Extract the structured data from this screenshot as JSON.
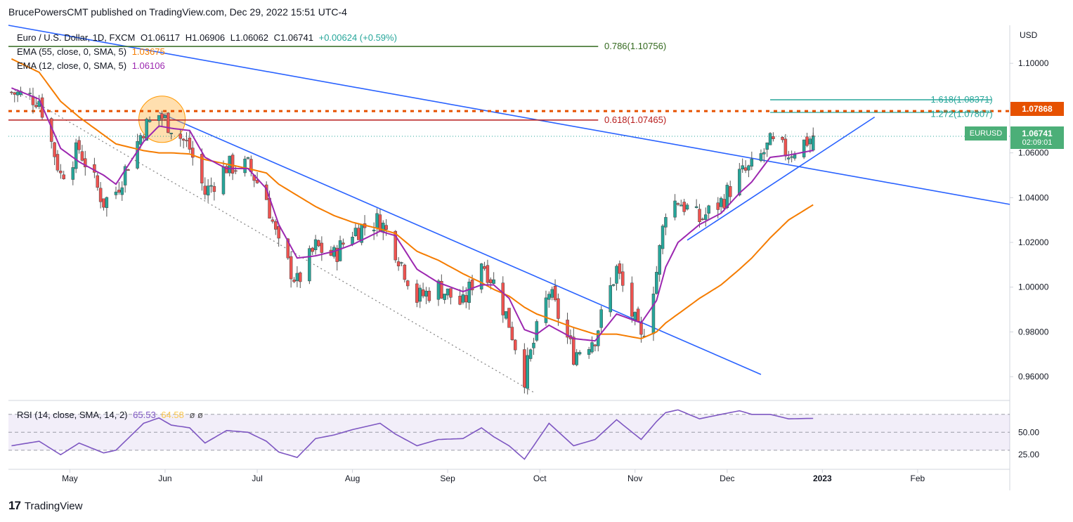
{
  "header": {
    "publisher": "BrucePowersCMT published on TradingView.com, Dec 29, 2022 15:51 UTC-4"
  },
  "legend": {
    "symbol_line": "Euro / U.S. Dollar, 1D, FXCM",
    "ohlc": {
      "o": "O1.06117",
      "h": "H1.06906",
      "l": "L1.06062",
      "c": "C1.06741",
      "chg": "+0.00624 (+0.59%)"
    },
    "ema55_label": "EMA (55, close, 0, SMA, 5)",
    "ema55_value": "1.03675",
    "ema12_label": "EMA (12, close, 0, SMA, 5)",
    "ema12_value": "1.06106",
    "rsi_label": "RSI (14, close, SMA, 14, 2)",
    "rsi_value": "65.53",
    "rsi_sma": "64.58",
    "rsi_extra": "ø  ø"
  },
  "axis": {
    "currency": "USD",
    "price_ticks": [
      "1.10000",
      "1.08000",
      "1.06000",
      "1.04000",
      "1.02000",
      "1.00000",
      "0.98000",
      "0.96000"
    ],
    "rsi_ticks": [
      "50.00",
      "25.00"
    ],
    "time_ticks": [
      "May",
      "Jun",
      "Jul",
      "Aug",
      "Sep",
      "Oct",
      "Nov",
      "Dec",
      "2023",
      "Feb"
    ]
  },
  "fib": {
    "f786": "0.786(1.10756)",
    "f618": "0.618(1.07465)",
    "f1618": "1.618(1.08371)",
    "f1272": "1.272(1.07807)"
  },
  "tags": {
    "resistance": "1.07868",
    "symbol": "EURUSD",
    "last_price": "1.06741",
    "countdown": "02:09:01"
  },
  "footer": {
    "brand": "TradingView",
    "logo_text": "17"
  },
  "colors": {
    "up": "#26a69a",
    "down": "#ef5350",
    "ema55": "#f57c00",
    "ema12": "#9c27b0",
    "trendline": "#2962ff",
    "rsi": "#7e57c2",
    "resistance": "#e65100",
    "fib786": "#33691e",
    "fib618": "#b71c1c",
    "fib1618": "#26a69a"
  },
  "chart_data": {
    "type": "candlestick",
    "title": "Euro / U.S. Dollar, 1D, FXCM",
    "ylabel": "USD",
    "ylim": [
      0.95,
      1.117
    ],
    "x_range": [
      "2022-04-11",
      "2023-03-03"
    ],
    "series": [
      {
        "name": "EMA (55, close, 0, SMA, 5)",
        "last": 1.03675
      },
      {
        "name": "EMA (12, close, 0, SMA, 5)",
        "last": 1.06106
      },
      {
        "name": "RSI (14, close, SMA, 14, 2)",
        "last": 65.53,
        "sma": 64.58,
        "ylim": [
          15,
          80
        ],
        "bands": [
          30,
          70
        ]
      }
    ],
    "levels": [
      {
        "label": "0.786",
        "value": 1.10756
      },
      {
        "label": "0.618",
        "value": 1.07465
      },
      {
        "label": "1.618",
        "value": 1.08371
      },
      {
        "label": "1.272",
        "value": 1.07807
      },
      {
        "label": "resistance",
        "value": 1.07868
      }
    ],
    "anchors": [
      {
        "date": "2022-04-12",
        "price": 1.087,
        "ema12": 1.089,
        "ema55": 1.102,
        "rsi": 35
      },
      {
        "date": "2022-04-21",
        "price": 1.084,
        "ema12": 1.084,
        "ema55": 1.096,
        "rsi": 40
      },
      {
        "date": "2022-04-28",
        "price": 1.05,
        "ema12": 1.062,
        "ema55": 1.083,
        "rsi": 25
      },
      {
        "date": "2022-05-04",
        "price": 1.062,
        "ema12": 1.056,
        "ema55": 1.076,
        "rsi": 38
      },
      {
        "date": "2022-05-12",
        "price": 1.038,
        "ema12": 1.05,
        "ema55": 1.068,
        "rsi": 27
      },
      {
        "date": "2022-05-16",
        "price": 1.043,
        "ema12": 1.046,
        "ema55": 1.064,
        "rsi": 30
      },
      {
        "date": "2022-05-25",
        "price": 1.071,
        "ema12": 1.065,
        "ema55": 1.061,
        "rsi": 60
      },
      {
        "date": "2022-05-30",
        "price": 1.077,
        "ema12": 1.072,
        "ema55": 1.06,
        "rsi": 66
      },
      {
        "date": "2022-06-03",
        "price": 1.072,
        "ema12": 1.071,
        "ema55": 1.06,
        "rsi": 58
      },
      {
        "date": "2022-06-09",
        "price": 1.062,
        "ema12": 1.07,
        "ema55": 1.0595,
        "rsi": 55
      },
      {
        "date": "2022-06-14",
        "price": 1.042,
        "ema12": 1.058,
        "ema55": 1.057,
        "rsi": 38
      },
      {
        "date": "2022-06-21",
        "price": 1.054,
        "ema12": 1.053,
        "ema55": 1.055,
        "rsi": 52
      },
      {
        "date": "2022-06-28",
        "price": 1.054,
        "ema12": 1.053,
        "ema55": 1.053,
        "rsi": 50
      },
      {
        "date": "2022-07-04",
        "price": 1.04,
        "ema12": 1.044,
        "ema55": 1.051,
        "rsi": 40
      },
      {
        "date": "2022-07-08",
        "price": 1.018,
        "ema12": 1.028,
        "ema55": 1.046,
        "rsi": 28
      },
      {
        "date": "2022-07-14",
        "price": 1.002,
        "ema12": 1.013,
        "ema55": 1.041,
        "rsi": 22
      },
      {
        "date": "2022-07-20",
        "price": 1.018,
        "ema12": 1.014,
        "ema55": 1.036,
        "rsi": 43
      },
      {
        "date": "2022-07-26",
        "price": 1.014,
        "ema12": 1.016,
        "ema55": 1.032,
        "rsi": 47
      },
      {
        "date": "2022-08-01",
        "price": 1.025,
        "ema12": 1.019,
        "ema55": 1.029,
        "rsi": 53
      },
      {
        "date": "2022-08-10",
        "price": 1.03,
        "ema12": 1.025,
        "ema55": 1.026,
        "rsi": 60
      },
      {
        "date": "2022-08-15",
        "price": 1.017,
        "ema12": 1.023,
        "ema55": 1.024,
        "rsi": 48
      },
      {
        "date": "2022-08-22",
        "price": 0.995,
        "ema12": 1.008,
        "ema55": 1.016,
        "rsi": 35
      },
      {
        "date": "2022-08-29",
        "price": 1.0,
        "ema12": 1.002,
        "ema55": 1.012,
        "rsi": 42
      },
      {
        "date": "2022-09-06",
        "price": 0.992,
        "ema12": 0.998,
        "ema55": 1.006,
        "rsi": 43
      },
      {
        "date": "2022-09-12",
        "price": 1.012,
        "ema12": 1.001,
        "ema55": 1.002,
        "rsi": 55
      },
      {
        "date": "2022-09-16",
        "price": 1.002,
        "ema12": 1.001,
        "ema55": 0.999,
        "rsi": 45
      },
      {
        "date": "2022-09-21",
        "price": 0.984,
        "ema12": 0.995,
        "ema55": 0.996,
        "rsi": 35
      },
      {
        "date": "2022-09-26",
        "price": 0.96,
        "ema12": 0.981,
        "ema55": 0.991,
        "rsi": 20
      },
      {
        "date": "2022-09-30",
        "price": 0.98,
        "ema12": 0.979,
        "ema55": 0.988,
        "rsi": 40
      },
      {
        "date": "2022-10-04",
        "price": 0.998,
        "ema12": 0.983,
        "ema55": 0.986,
        "rsi": 60
      },
      {
        "date": "2022-10-12",
        "price": 0.97,
        "ema12": 0.977,
        "ema55": 0.982,
        "rsi": 35
      },
      {
        "date": "2022-10-19",
        "price": 0.978,
        "ema12": 0.976,
        "ema55": 0.979,
        "rsi": 42
      },
      {
        "date": "2022-10-26",
        "price": 1.008,
        "ema12": 0.988,
        "ema55": 0.979,
        "rsi": 64
      },
      {
        "date": "2022-11-03",
        "price": 0.976,
        "ema12": 0.984,
        "ema55": 0.977,
        "rsi": 42
      },
      {
        "date": "2022-11-08",
        "price": 1.007,
        "ema12": 0.994,
        "ema55": 0.98,
        "rsi": 62
      },
      {
        "date": "2022-11-11",
        "price": 1.035,
        "ema12": 1.009,
        "ema55": 0.984,
        "rsi": 72
      },
      {
        "date": "2022-11-15",
        "price": 1.039,
        "ema12": 1.02,
        "ema55": 0.988,
        "rsi": 75
      },
      {
        "date": "2022-11-22",
        "price": 1.03,
        "ema12": 1.028,
        "ema55": 0.995,
        "rsi": 65
      },
      {
        "date": "2022-11-29",
        "price": 1.038,
        "ema12": 1.033,
        "ema55": 1.001,
        "rsi": 70
      },
      {
        "date": "2022-12-05",
        "price": 1.05,
        "ema12": 1.042,
        "ema55": 1.008,
        "rsi": 74
      },
      {
        "date": "2022-12-09",
        "price": 1.053,
        "ema12": 1.047,
        "ema55": 1.013,
        "rsi": 70
      },
      {
        "date": "2022-12-15",
        "price": 1.064,
        "ema12": 1.058,
        "ema55": 1.022,
        "rsi": 70
      },
      {
        "date": "2022-12-21",
        "price": 1.06,
        "ema12": 1.059,
        "ema55": 1.03,
        "rsi": 65
      },
      {
        "date": "2022-12-29",
        "price": 1.0674,
        "ema12": 1.0611,
        "ema55": 1.0368,
        "rsi": 65.53
      }
    ]
  }
}
